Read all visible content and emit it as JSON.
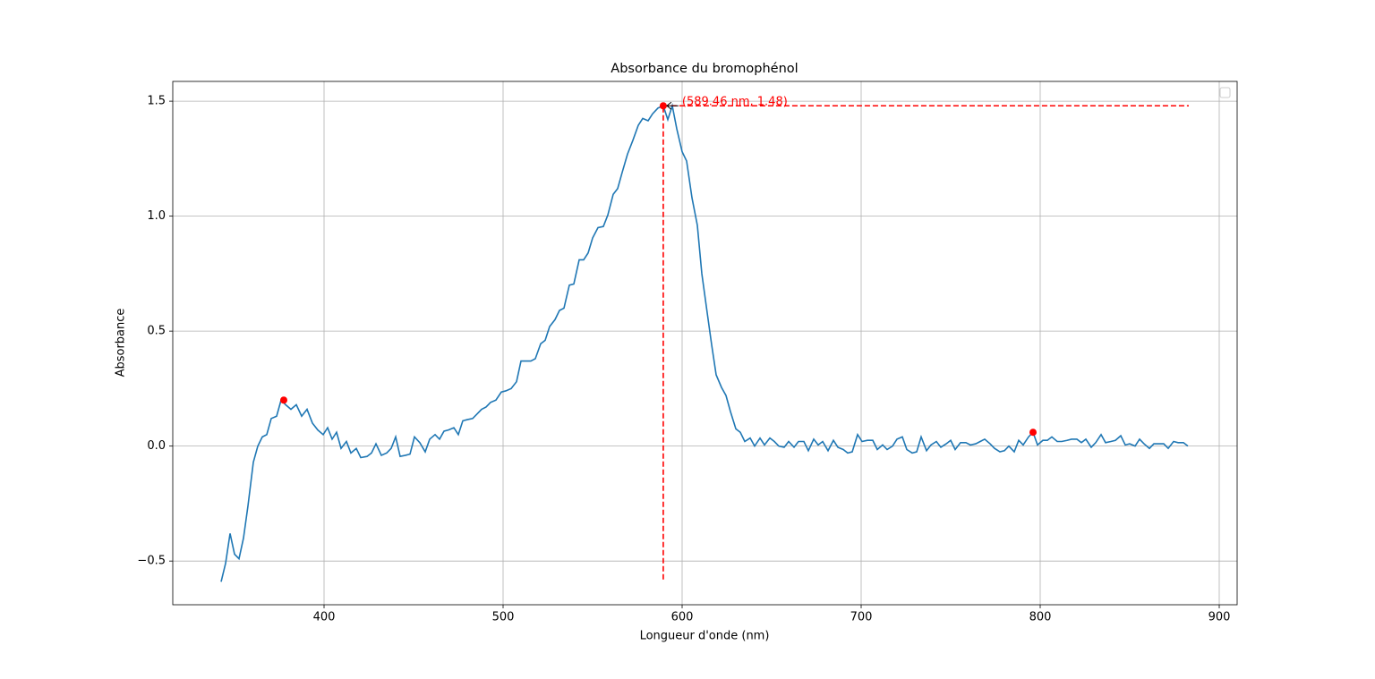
{
  "chart_data": {
    "type": "line",
    "title": "Absorbance du bromophénol",
    "x_label": "Longueur d'onde (nm)",
    "y_label": "Absorbance",
    "color": "#1f77b4",
    "x": [
      342.5,
      345,
      347.5,
      350,
      352.5,
      355,
      357.5,
      360.5,
      363,
      365.5,
      368,
      370.5,
      373.5,
      376,
      378.5,
      381.5,
      384.5,
      387.5,
      390.5,
      393.5,
      396.5,
      399.5,
      402,
      404.5,
      407,
      409.5,
      412.5,
      415,
      418,
      420.5,
      424,
      426.5,
      429,
      432,
      435,
      437.5,
      440,
      442.5,
      445.5,
      448,
      450.5,
      453.5,
      456.5,
      459,
      462,
      464.5,
      467,
      469.5,
      472.5,
      475,
      477.5,
      480,
      483,
      485.5,
      488,
      490.5,
      493,
      496,
      499,
      501.5,
      504.5,
      507.5,
      510,
      512.5,
      515.5,
      518,
      521,
      523.5,
      526,
      529,
      531.5,
      534,
      537,
      539.5,
      542.5,
      545,
      547.5,
      550,
      553,
      556,
      558.5,
      561.5,
      564,
      566.5,
      569.5,
      572.5,
      575.5,
      578,
      581,
      583.5,
      586.5,
      589.46,
      592,
      594.5,
      597,
      600,
      602.5,
      605.5,
      608.5,
      611,
      614,
      616.5,
      619,
      622,
      624.5,
      627,
      630,
      632.5,
      635,
      638,
      640.5,
      643.5,
      646,
      649,
      651.5,
      654,
      657,
      659.5,
      662.5,
      665,
      668,
      670.5,
      673.5,
      676,
      678.5,
      681.5,
      684.5,
      687,
      690,
      692.5,
      695,
      698,
      700.5,
      703.5,
      706.5,
      709,
      712,
      714.5,
      717.5,
      720,
      723,
      725.5,
      728.5,
      731,
      733.5,
      736.5,
      739,
      742,
      744.5,
      747.5,
      750,
      752.5,
      755.5,
      758.5,
      761,
      764,
      766.5,
      769,
      772,
      774.5,
      777.5,
      780,
      782.5,
      785.5,
      788,
      790.5,
      793.5,
      796,
      798.5,
      801.5,
      804,
      806.5,
      809.5,
      812,
      815,
      817.5,
      820.5,
      823,
      825.5,
      828.5,
      831,
      834,
      836.5,
      839.5,
      842,
      845,
      847.5,
      850,
      853,
      855.5,
      858,
      861,
      863.5,
      866.5,
      869,
      871.5,
      874.5,
      877,
      880,
      882.5
    ],
    "values": [
      -0.59,
      -0.51,
      -0.38,
      -0.47,
      -0.49,
      -0.4,
      -0.26,
      -0.07,
      0.0,
      0.04,
      0.05,
      0.12,
      0.13,
      0.2,
      0.18,
      0.16,
      0.18,
      0.13,
      0.16,
      0.1,
      0.07,
      0.05,
      0.08,
      0.03,
      0.06,
      -0.01,
      0.02,
      -0.03,
      -0.01,
      -0.05,
      -0.045,
      -0.03,
      0.01,
      -0.04,
      -0.03,
      -0.01,
      0.04,
      -0.045,
      -0.04,
      -0.035,
      0.04,
      0.015,
      -0.025,
      0.03,
      0.05,
      0.03,
      0.065,
      0.07,
      0.08,
      0.05,
      0.11,
      0.115,
      0.12,
      0.14,
      0.16,
      0.17,
      0.19,
      0.2,
      0.235,
      0.24,
      0.25,
      0.28,
      0.37,
      0.37,
      0.37,
      0.38,
      0.445,
      0.46,
      0.52,
      0.55,
      0.59,
      0.6,
      0.7,
      0.705,
      0.81,
      0.81,
      0.84,
      0.905,
      0.95,
      0.955,
      1.005,
      1.095,
      1.12,
      1.19,
      1.27,
      1.33,
      1.395,
      1.425,
      1.415,
      1.445,
      1.47,
      1.48,
      1.42,
      1.48,
      1.38,
      1.28,
      1.24,
      1.08,
      0.96,
      0.75,
      0.58,
      0.44,
      0.31,
      0.255,
      0.22,
      0.15,
      0.075,
      0.06,
      0.02,
      0.035,
      0.0,
      0.035,
      0.005,
      0.035,
      0.02,
      0.0,
      -0.005,
      0.02,
      -0.005,
      0.02,
      0.02,
      -0.02,
      0.03,
      0.005,
      0.02,
      -0.02,
      0.025,
      -0.005,
      -0.015,
      -0.03,
      -0.025,
      0.05,
      0.02,
      0.025,
      0.025,
      -0.015,
      0.005,
      -0.015,
      0.0,
      0.03,
      0.04,
      -0.015,
      -0.03,
      -0.025,
      0.04,
      -0.02,
      0.005,
      0.02,
      -0.005,
      0.01,
      0.025,
      -0.015,
      0.015,
      0.015,
      0.005,
      0.01,
      0.02,
      0.03,
      0.01,
      -0.01,
      -0.025,
      -0.02,
      0.0,
      -0.025,
      0.025,
      0.005,
      0.04,
      0.06,
      0.005,
      0.025,
      0.025,
      0.04,
      0.02,
      0.02,
      0.025,
      0.03,
      0.03,
      0.015,
      0.03,
      -0.005,
      0.015,
      0.05,
      0.015,
      0.02,
      0.025,
      0.045,
      0.005,
      0.01,
      0.0,
      0.03,
      0.01,
      -0.01,
      0.01,
      0.01,
      0.01,
      -0.01,
      0.02,
      0.015,
      0.015,
      0.0
    ],
    "markers": {
      "color": "#ff0000",
      "x": [
        377.5,
        589.46,
        796
      ],
      "y": [
        0.2,
        1.48,
        0.06
      ]
    },
    "guides": {
      "color": "#ff0000",
      "x": 589.46,
      "y": 1.48,
      "ymin": -0.58,
      "xmax": 883
    },
    "annotation": {
      "text": "(589.46 nm, 1.48)",
      "x": 589.46,
      "y": 1.48
    },
    "xlim": [
      315.5,
      910
    ],
    "ylim": [
      -0.69,
      1.586
    ],
    "xticks": [
      400,
      500,
      600,
      700,
      800,
      900
    ],
    "yticks": [
      {
        "value": -0.5,
        "label": "−0.5"
      },
      {
        "value": 0,
        "label": "0.0"
      },
      {
        "value": 0.5,
        "label": "0.5"
      },
      {
        "value": 1,
        "label": "1.0"
      },
      {
        "value": 1.5,
        "label": "1.5"
      }
    ],
    "grid": true
  }
}
